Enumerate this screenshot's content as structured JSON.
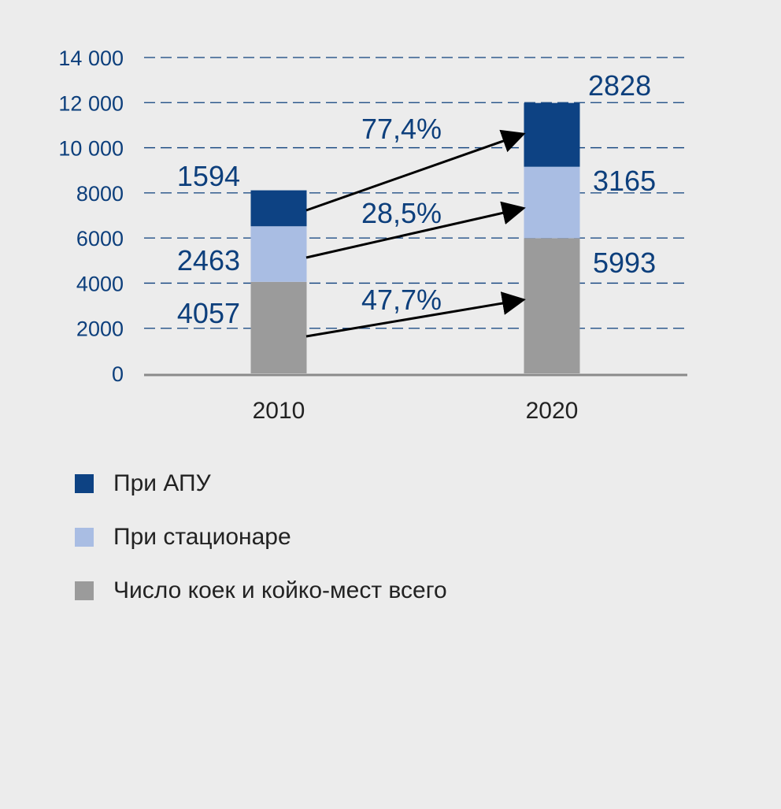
{
  "chart_data": {
    "type": "bar",
    "stacked": true,
    "categories": [
      "2010",
      "2020"
    ],
    "series": [
      {
        "name": "Число коек и койко-мест всего",
        "values": [
          4057,
          5993
        ],
        "color": "#9b9b9b"
      },
      {
        "name": "При стационаре",
        "values": [
          2463,
          3165
        ],
        "color": "#a9bde3"
      },
      {
        "name": "При АПУ",
        "values": [
          1594,
          2828
        ],
        "color": "#0d4283"
      }
    ],
    "changes": [
      {
        "series": "Число коек и койко-мест всего",
        "label": "47,7%"
      },
      {
        "series": "При стационаре",
        "label": "28,5%"
      },
      {
        "series": "При АПУ",
        "label": "77,4%"
      }
    ],
    "ylim": [
      0,
      14000
    ],
    "yticks": [
      0,
      2000,
      4000,
      6000,
      8000,
      10000,
      12000,
      14000
    ],
    "ytick_labels": [
      "0",
      "2000",
      "4000",
      "6000",
      "8000",
      "10 000",
      "12 000",
      "14 000"
    ],
    "grid": "dashed",
    "legend_position": "bottom-left",
    "title": "",
    "xlabel": "",
    "ylabel": ""
  },
  "legend": [
    {
      "label": "При АПУ",
      "color": "#0d4283"
    },
    {
      "label": "При стационаре",
      "color": "#a9bde3"
    },
    {
      "label": "Число коек и койко-мест всего",
      "color": "#9b9b9b"
    }
  ]
}
